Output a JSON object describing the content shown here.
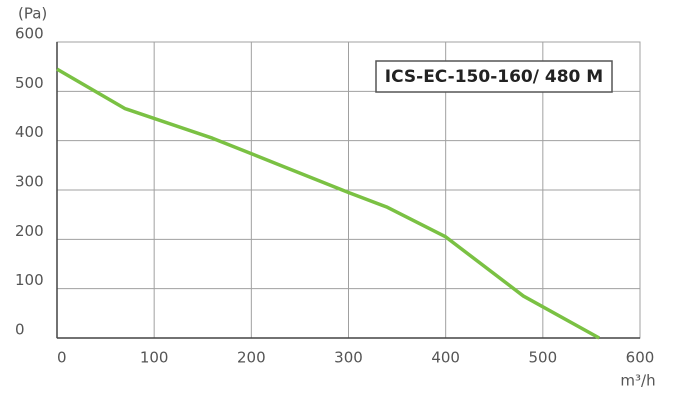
{
  "chart_data": {
    "type": "line",
    "annotation": "ICS-EC-150-160/ 480 M",
    "y_label": "(Pa)",
    "x_label": "m³/h",
    "x": [
      0,
      70,
      160,
      230,
      300,
      340,
      400,
      480,
      558
    ],
    "values": [
      545,
      465,
      405,
      350,
      295,
      265,
      205,
      85,
      0
    ],
    "color": "#7ac143",
    "xlim": [
      0,
      600
    ],
    "xticks": [
      0,
      100,
      200,
      300,
      400,
      500,
      600
    ],
    "ylim": [
      0,
      600
    ],
    "yticks": [
      0,
      100,
      200,
      300,
      400,
      500,
      600
    ],
    "grid": true
  }
}
